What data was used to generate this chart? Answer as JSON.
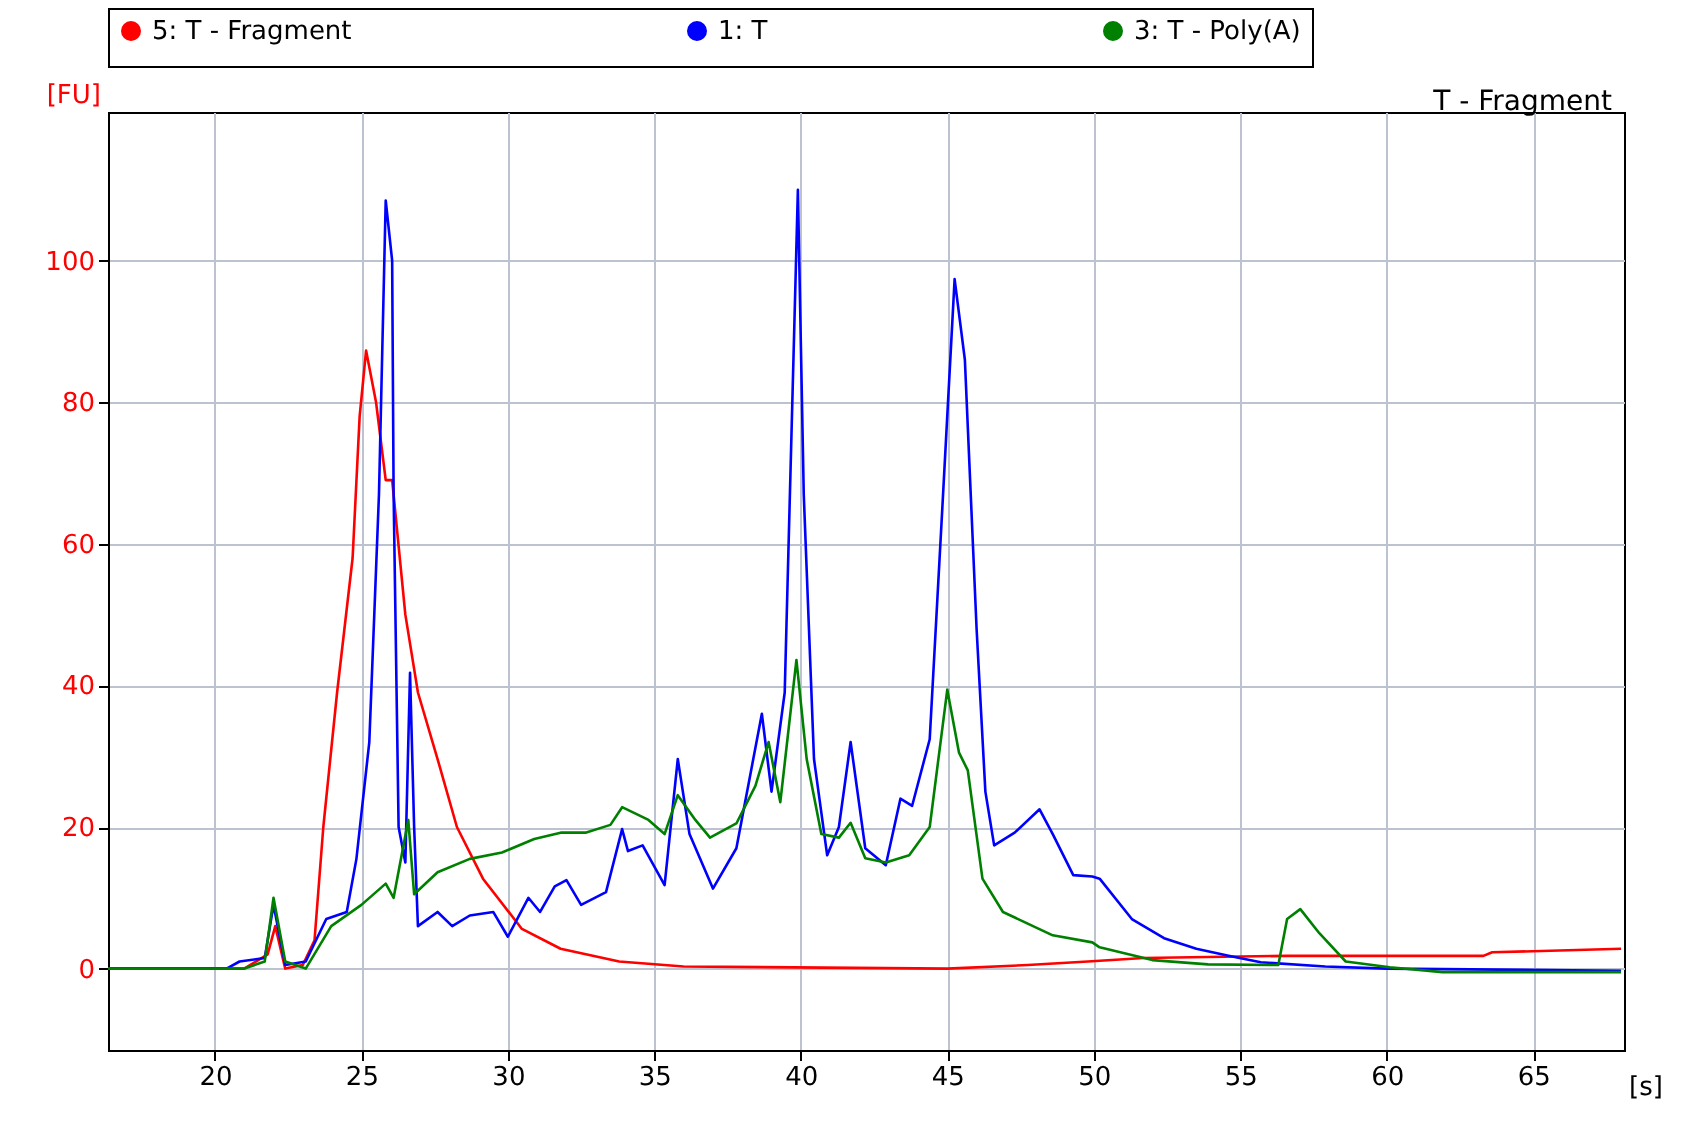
{
  "chart_data": {
    "type": "line",
    "title": "T - Fragment",
    "xlabel": "[s]",
    "ylabel": "[FU]",
    "xlim": [
      16.35,
      68.1
    ],
    "ylim": [
      -11.5,
      121
    ],
    "xticks": [
      20,
      25,
      30,
      35,
      40,
      45,
      50,
      55,
      60,
      65
    ],
    "yticks": [
      0,
      20,
      40,
      60,
      80,
      100
    ],
    "grid": true,
    "legend": "top",
    "marker": "none",
    "line_style": "solid",
    "series": [
      {
        "name": "5: T - Fragment",
        "color": "#ff0000",
        "x": [
          16.35,
          21.0,
          21.8,
          22.06,
          22.4,
          23.0,
          23.4,
          23.7,
          24.17,
          24.7,
          24.94,
          25.16,
          25.5,
          25.83,
          26.05,
          26.5,
          26.93,
          27.6,
          28.26,
          29.15,
          30.48,
          31.8,
          33.8,
          36.0,
          45.0,
          47.75,
          49.8,
          51.7,
          56.6,
          63.3,
          63.6,
          68.0
        ],
        "values": [
          0,
          0,
          2,
          6,
          0,
          0.5,
          4,
          20,
          39,
          58,
          78,
          87.3,
          80,
          69,
          69,
          50,
          39,
          29.6,
          20,
          12.7,
          5.6,
          2.8,
          1,
          0.3,
          0,
          0.5,
          1,
          1.5,
          1.8,
          1.8,
          2.3,
          2.8
        ]
      },
      {
        "name": "1: T",
        "color": "#0000ff",
        "x": [
          16.35,
          20.4,
          20.84,
          21.7,
          22.0,
          22.4,
          23.1,
          23.8,
          24.5,
          24.83,
          25.27,
          25.6,
          25.83,
          26.05,
          26.1,
          26.27,
          26.5,
          26.66,
          26.8,
          26.93,
          27.6,
          28.1,
          28.7,
          29.5,
          30.0,
          30.7,
          31.1,
          31.6,
          32.0,
          32.5,
          33.35,
          33.9,
          34.1,
          34.6,
          35.35,
          35.8,
          36.2,
          37.0,
          37.8,
          38.67,
          39.0,
          39.45,
          39.9,
          40.1,
          40.45,
          40.9,
          41.3,
          41.7,
          42.2,
          42.9,
          43.4,
          43.8,
          44.4,
          44.83,
          45.25,
          45.6,
          46.0,
          46.3,
          46.6,
          47.3,
          48.15,
          48.6,
          49.3,
          49.95,
          50.2,
          51.3,
          52.4,
          53.5,
          54.6,
          55.7,
          57.9,
          60.0,
          68.0
        ],
        "values": [
          0,
          0,
          1,
          1.5,
          9,
          0.5,
          1,
          7,
          8,
          15.5,
          32,
          67,
          108.5,
          100,
          67,
          20,
          15,
          41.8,
          20,
          6,
          8,
          6,
          7.5,
          8,
          4.5,
          10,
          8,
          11.6,
          12.5,
          9,
          10.8,
          19.7,
          16.6,
          17.4,
          11.8,
          29.6,
          19,
          11.3,
          17,
          36,
          25,
          39,
          110,
          67,
          29.6,
          16,
          20,
          32,
          17,
          14.6,
          24,
          23,
          32.4,
          65,
          97.4,
          86,
          48,
          25,
          17.4,
          19.2,
          22.5,
          19,
          13.2,
          13,
          12.7,
          7,
          4.3,
          2.8,
          1.8,
          0.9,
          0.3,
          0,
          -0.3
        ]
      },
      {
        "name": "3: T - Poly(A)",
        "color": "#008000",
        "x": [
          16.35,
          21.0,
          21.7,
          22.0,
          22.4,
          23.1,
          23.97,
          25.0,
          25.83,
          26.1,
          26.6,
          26.8,
          27.6,
          28.7,
          29.8,
          30.9,
          31.8,
          32.65,
          33.5,
          33.9,
          34.8,
          35.35,
          35.8,
          36.4,
          36.9,
          37.8,
          38.45,
          38.9,
          39.3,
          39.85,
          40.2,
          40.7,
          41.3,
          41.7,
          42.2,
          42.9,
          43.7,
          44.4,
          45.0,
          45.4,
          45.7,
          46.2,
          46.9,
          48.6,
          49.95,
          50.2,
          52.0,
          53.9,
          56.3,
          56.6,
          57.05,
          57.7,
          58.6,
          60.1,
          61.9,
          68.0
        ],
        "values": [
          0,
          0,
          1,
          10,
          1,
          0,
          6,
          9,
          12,
          10,
          21,
          10.5,
          13.6,
          15.5,
          16.4,
          18.3,
          19.2,
          19.2,
          20.3,
          22.8,
          21,
          19,
          24.5,
          21,
          18.5,
          20.5,
          25.8,
          32,
          23.5,
          43.6,
          29.6,
          19,
          18.5,
          20.6,
          15.6,
          15,
          16,
          20,
          39.4,
          30.5,
          28,
          12.7,
          8,
          4.7,
          3.7,
          3,
          1.2,
          0.6,
          0.5,
          7,
          8.4,
          5,
          1,
          0.2,
          -0.5,
          -0.5
        ]
      }
    ]
  }
}
